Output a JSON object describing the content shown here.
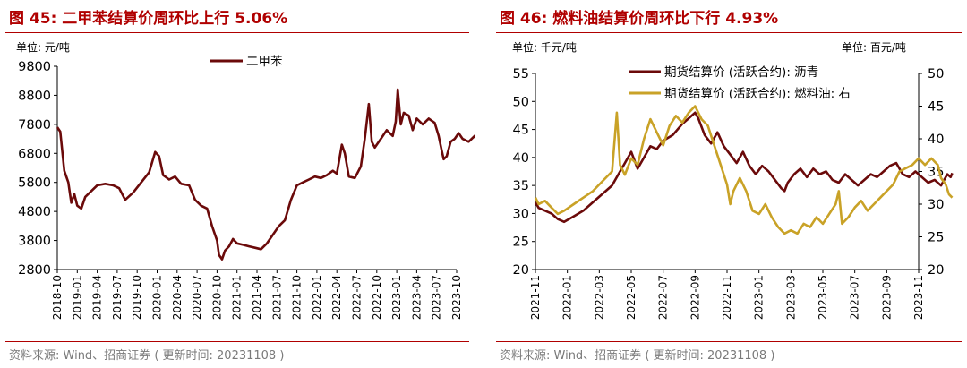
{
  "colors": {
    "title": "#b00000",
    "series_dark": "#6b0a0a",
    "series_gold": "#c9a227",
    "source": "#7a7a7a"
  },
  "left": {
    "title": "图 45:  二甲苯结算价周环比上行 5.06%",
    "unit": "单位:  元/吨",
    "source": "资料来源:  Wind、招商证券 ( 更新时间: 20231108 )",
    "chart_data": {
      "type": "line",
      "ylim": [
        2800,
        9800
      ],
      "yticks": [
        "9800",
        "8800",
        "7800",
        "6800",
        "5800",
        "4800",
        "3800",
        "2800"
      ],
      "xticks": [
        "2018-10",
        "2019-01",
        "2019-04",
        "2019-07",
        "2019-10",
        "2020-01",
        "2020-04",
        "2020-07",
        "2020-10",
        "2021-01",
        "2021-04",
        "2021-07",
        "2021-10",
        "2022-01",
        "2022-04",
        "2022-07",
        "2022-10",
        "2023-01",
        "2023-04",
        "2023-07",
        "2023-10"
      ],
      "legend": "top-center",
      "series": [
        {
          "name": "二甲苯",
          "points": [
            [
              0,
              7700
            ],
            [
              0.15,
              7550
            ],
            [
              0.35,
              6200
            ],
            [
              0.55,
              5800
            ],
            [
              0.7,
              5100
            ],
            [
              0.85,
              5400
            ],
            [
              1.0,
              5000
            ],
            [
              1.2,
              4900
            ],
            [
              1.4,
              5300
            ],
            [
              1.7,
              5500
            ],
            [
              2.0,
              5700
            ],
            [
              2.4,
              5750
            ],
            [
              2.8,
              5700
            ],
            [
              3.1,
              5600
            ],
            [
              3.4,
              5200
            ],
            [
              3.8,
              5450
            ],
            [
              4.2,
              5800
            ],
            [
              4.6,
              6150
            ],
            [
              4.9,
              6850
            ],
            [
              5.1,
              6700
            ],
            [
              5.3,
              6050
            ],
            [
              5.6,
              5900
            ],
            [
              5.9,
              6000
            ],
            [
              6.2,
              5750
            ],
            [
              6.6,
              5700
            ],
            [
              6.9,
              5200
            ],
            [
              7.2,
              5000
            ],
            [
              7.5,
              4900
            ],
            [
              7.75,
              4300
            ],
            [
              8.0,
              3800
            ],
            [
              8.1,
              3300
            ],
            [
              8.25,
              3150
            ],
            [
              8.4,
              3450
            ],
            [
              8.6,
              3600
            ],
            [
              8.8,
              3850
            ],
            [
              9.0,
              3700
            ],
            [
              9.3,
              3650
            ],
            [
              9.6,
              3600
            ],
            [
              9.9,
              3550
            ],
            [
              10.2,
              3500
            ],
            [
              10.5,
              3700
            ],
            [
              10.8,
              4000
            ],
            [
              11.1,
              4300
            ],
            [
              11.4,
              4500
            ],
            [
              11.7,
              5200
            ],
            [
              12.0,
              5700
            ],
            [
              12.3,
              5800
            ],
            [
              12.6,
              5900
            ],
            [
              12.9,
              6000
            ],
            [
              13.2,
              5950
            ],
            [
              13.5,
              6050
            ],
            [
              13.8,
              6200
            ],
            [
              14.0,
              6100
            ],
            [
              14.25,
              7100
            ],
            [
              14.4,
              6800
            ],
            [
              14.6,
              6000
            ],
            [
              14.9,
              5950
            ],
            [
              15.2,
              6350
            ],
            [
              15.4,
              7300
            ],
            [
              15.6,
              8500
            ],
            [
              15.75,
              7200
            ],
            [
              15.9,
              7000
            ],
            [
              16.2,
              7300
            ],
            [
              16.5,
              7600
            ],
            [
              16.8,
              7400
            ],
            [
              16.95,
              7900
            ],
            [
              17.05,
              9000
            ],
            [
              17.2,
              7800
            ],
            [
              17.35,
              8200
            ],
            [
              17.6,
              8100
            ],
            [
              17.8,
              7600
            ],
            [
              18.0,
              8000
            ],
            [
              18.3,
              7800
            ],
            [
              18.6,
              8000
            ],
            [
              18.9,
              7850
            ],
            [
              19.1,
              7400
            ],
            [
              19.25,
              6900
            ],
            [
              19.35,
              6600
            ],
            [
              19.5,
              6700
            ],
            [
              19.7,
              7200
            ],
            [
              19.9,
              7300
            ],
            [
              20.1,
              7500
            ],
            [
              20.3,
              7300
            ],
            [
              20.6,
              7200
            ],
            [
              20.9,
              7400
            ],
            [
              21.2,
              7000
            ],
            [
              21.4,
              7600
            ],
            [
              21.6,
              8000
            ],
            [
              21.8,
              8600
            ],
            [
              22.0,
              8550
            ],
            [
              22.2,
              8500
            ],
            [
              22.4,
              8600
            ],
            [
              22.6,
              8300
            ],
            [
              22.8,
              7300
            ],
            [
              22.9,
              7100
            ],
            [
              23.0,
              7550
            ]
          ]
        }
      ]
    }
  },
  "right": {
    "title": "图 46:  燃料油结算价周环比下行 4.93%",
    "unit_left": "单位:  千元/吨",
    "unit_right": "单位:  百元/吨",
    "source": "资料来源:  Wind、招商证券 ( 更新时间: 20231108 )",
    "chart_data": {
      "type": "line",
      "ylim": [
        20,
        55
      ],
      "ylim_right": [
        20,
        50
      ],
      "yticks": [
        "55",
        "50",
        "45",
        "40",
        "35",
        "30",
        "25",
        "20"
      ],
      "yticks_right": [
        "50",
        "45",
        "40",
        "35",
        "30",
        "25",
        "20"
      ],
      "xticks": [
        "2021-11",
        "2022-01",
        "2022-03",
        "2022-05",
        "2022-07",
        "2022-09",
        "2022-11",
        "2023-01",
        "2023-03",
        "2023-05",
        "2023-07",
        "2023-09",
        "2023-11"
      ],
      "legend": "top-right",
      "series": [
        {
          "name": "期货结算价 (活跃合约): 沥青",
          "axis": "left",
          "points": [
            [
              0,
              32
            ],
            [
              0.1,
              31
            ],
            [
              0.3,
              30.5
            ],
            [
              0.5,
              30
            ],
            [
              0.7,
              29
            ],
            [
              0.9,
              28.5
            ],
            [
              1.2,
              29.5
            ],
            [
              1.5,
              30.5
            ],
            [
              1.8,
              32
            ],
            [
              2.1,
              33.5
            ],
            [
              2.4,
              35
            ],
            [
              2.6,
              37
            ],
            [
              2.8,
              39
            ],
            [
              3.0,
              41
            ],
            [
              3.2,
              38
            ],
            [
              3.4,
              40
            ],
            [
              3.6,
              42
            ],
            [
              3.8,
              41.5
            ],
            [
              4.0,
              43
            ],
            [
              4.3,
              44
            ],
            [
              4.6,
              46
            ],
            [
              4.8,
              47
            ],
            [
              5.0,
              48
            ],
            [
              5.1,
              47
            ],
            [
              5.3,
              44
            ],
            [
              5.5,
              42.5
            ],
            [
              5.7,
              44.5
            ],
            [
              5.9,
              42
            ],
            [
              6.1,
              40.5
            ],
            [
              6.3,
              39
            ],
            [
              6.5,
              41
            ],
            [
              6.7,
              38.5
            ],
            [
              6.9,
              37
            ],
            [
              7.1,
              38.5
            ],
            [
              7.3,
              37.5
            ],
            [
              7.5,
              36
            ],
            [
              7.7,
              34.5
            ],
            [
              7.8,
              34
            ],
            [
              7.9,
              35.5
            ],
            [
              8.1,
              37
            ],
            [
              8.3,
              38
            ],
            [
              8.5,
              36.5
            ],
            [
              8.7,
              38
            ],
            [
              8.9,
              37
            ],
            [
              9.1,
              37.5
            ],
            [
              9.3,
              36
            ],
            [
              9.5,
              35.5
            ],
            [
              9.7,
              37
            ],
            [
              9.9,
              36
            ],
            [
              10.1,
              35
            ],
            [
              10.3,
              36
            ],
            [
              10.5,
              37
            ],
            [
              10.7,
              36.5
            ],
            [
              10.9,
              37.5
            ],
            [
              11.1,
              38.5
            ],
            [
              11.3,
              39
            ],
            [
              11.5,
              37
            ],
            [
              11.7,
              36.5
            ],
            [
              11.9,
              37.5
            ],
            [
              12.1,
              36.5
            ],
            [
              12.3,
              35.5
            ],
            [
              12.5,
              36
            ],
            [
              12.7,
              35
            ],
            [
              12.8,
              36
            ],
            [
              12.9,
              37
            ],
            [
              13.0,
              36.5
            ],
            [
              13.05,
              37.2
            ]
          ]
        },
        {
          "name": "期货结算价 (活跃合约): 燃料油: 右",
          "axis": "right",
          "points": [
            [
              0,
              31
            ],
            [
              0.1,
              30
            ],
            [
              0.3,
              30.5
            ],
            [
              0.5,
              29.5
            ],
            [
              0.7,
              28.5
            ],
            [
              0.9,
              29
            ],
            [
              1.2,
              30
            ],
            [
              1.5,
              31
            ],
            [
              1.8,
              32
            ],
            [
              2.1,
              33.5
            ],
            [
              2.4,
              35
            ],
            [
              2.55,
              44
            ],
            [
              2.65,
              36
            ],
            [
              2.8,
              34.5
            ],
            [
              3.0,
              37
            ],
            [
              3.2,
              36
            ],
            [
              3.4,
              40
            ],
            [
              3.6,
              43
            ],
            [
              3.8,
              41
            ],
            [
              4.0,
              39
            ],
            [
              4.2,
              42
            ],
            [
              4.4,
              43.5
            ],
            [
              4.6,
              42.5
            ],
            [
              4.8,
              44
            ],
            [
              5.0,
              45
            ],
            [
              5.2,
              43
            ],
            [
              5.4,
              42
            ],
            [
              5.6,
              39
            ],
            [
              5.8,
              36
            ],
            [
              6.0,
              33
            ],
            [
              6.1,
              30
            ],
            [
              6.2,
              32
            ],
            [
              6.4,
              34
            ],
            [
              6.6,
              32
            ],
            [
              6.8,
              29
            ],
            [
              7.0,
              28.5
            ],
            [
              7.2,
              30
            ],
            [
              7.4,
              28
            ],
            [
              7.6,
              26.5
            ],
            [
              7.8,
              25.5
            ],
            [
              8.0,
              26
            ],
            [
              8.2,
              25.5
            ],
            [
              8.4,
              27
            ],
            [
              8.6,
              26.5
            ],
            [
              8.8,
              28
            ],
            [
              9.0,
              27
            ],
            [
              9.2,
              28.5
            ],
            [
              9.4,
              30
            ],
            [
              9.5,
              32
            ],
            [
              9.6,
              27
            ],
            [
              9.8,
              28
            ],
            [
              10.0,
              29.5
            ],
            [
              10.2,
              30.5
            ],
            [
              10.4,
              29
            ],
            [
              10.6,
              30
            ],
            [
              10.8,
              31
            ],
            [
              11.0,
              32
            ],
            [
              11.2,
              33
            ],
            [
              11.4,
              35
            ],
            [
              11.6,
              35.5
            ],
            [
              11.8,
              36
            ],
            [
              12.0,
              37
            ],
            [
              12.2,
              36
            ],
            [
              12.4,
              37
            ],
            [
              12.6,
              36
            ],
            [
              12.7,
              34
            ],
            [
              12.85,
              33
            ],
            [
              12.95,
              31.5
            ],
            [
              13.05,
              31
            ]
          ]
        }
      ]
    }
  }
}
